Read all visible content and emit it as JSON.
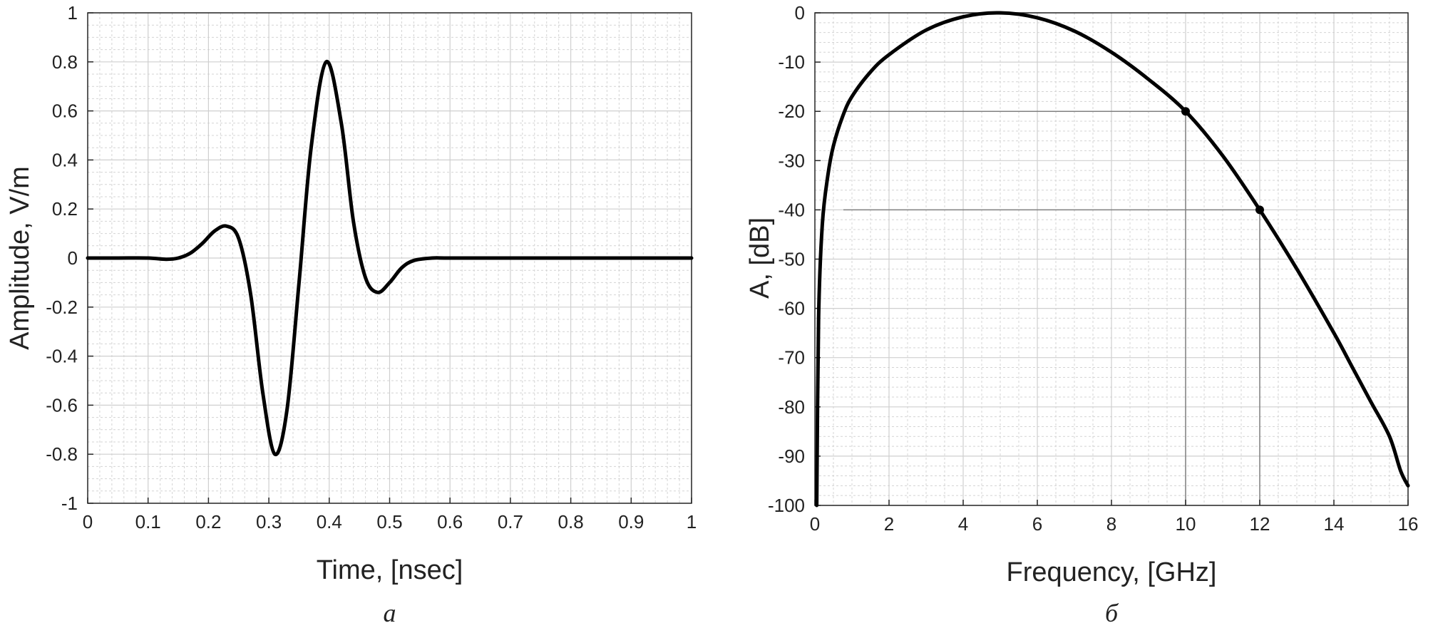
{
  "chart_data": [
    {
      "type": "line",
      "panel_label": "а",
      "xlabel": "Time, [nsec]",
      "ylabel": "Amplitude, V/m",
      "xlim": [
        0,
        1
      ],
      "ylim": [
        -1,
        1
      ],
      "xticks": [
        "0",
        "0.1",
        "0.2",
        "0.3",
        "0.4",
        "0.5",
        "0.6",
        "0.7",
        "0.8",
        "0.9",
        "1"
      ],
      "yticks": [
        "-1",
        "-0.8",
        "-0.6",
        "-0.4",
        "-0.2",
        "0",
        "0.2",
        "0.4",
        "0.6",
        "0.8",
        "1"
      ],
      "grid": true,
      "line_color": "#000000",
      "series": [
        {
          "x": [
            0,
            0.05,
            0.1,
            0.13,
            0.15,
            0.17,
            0.19,
            0.21,
            0.23,
            0.25,
            0.27,
            0.29,
            0.31,
            0.33,
            0.35,
            0.37,
            0.395,
            0.42,
            0.44,
            0.46,
            0.48,
            0.5,
            0.52,
            0.54,
            0.57,
            0.6,
            0.7,
            0.8,
            0.9,
            1.0
          ],
          "y": [
            0,
            0,
            0,
            -0.005,
            0,
            0.02,
            0.06,
            0.11,
            0.13,
            0.08,
            -0.15,
            -0.55,
            -0.8,
            -0.62,
            -0.1,
            0.45,
            0.8,
            0.55,
            0.15,
            -0.08,
            -0.14,
            -0.1,
            -0.04,
            -0.01,
            0,
            0,
            0,
            0,
            0,
            0
          ]
        }
      ]
    },
    {
      "type": "line",
      "panel_label": "б",
      "xlabel": "Frequency, [GHz]",
      "ylabel": "A, [dB]",
      "xlim": [
        0,
        16
      ],
      "ylim": [
        -100,
        0
      ],
      "xticks": [
        "0",
        "2",
        "4",
        "6",
        "8",
        "10",
        "12",
        "14",
        "16"
      ],
      "yticks": [
        "-100",
        "-90",
        "-80",
        "-70",
        "-60",
        "-50",
        "-40",
        "-30",
        "-20",
        "-10",
        "0"
      ],
      "grid": true,
      "line_color": "#000000",
      "series": [
        {
          "x": [
            0.05,
            0.1,
            0.2,
            0.35,
            0.5,
            0.75,
            1,
            1.5,
            2,
            3,
            4,
            5,
            6,
            7,
            8,
            9,
            10,
            11,
            12,
            13,
            14,
            14.5,
            15,
            15.5,
            15.8,
            16
          ],
          "y": [
            -100,
            -62,
            -43,
            -33,
            -27,
            -21,
            -17,
            -12,
            -8.5,
            -3.5,
            -0.8,
            0,
            -1,
            -3.7,
            -8,
            -13.5,
            -20,
            -29,
            -40,
            -52,
            -65,
            -72,
            -79,
            -86,
            -93,
            -96
          ]
        }
      ],
      "markers": [
        {
          "x": 10,
          "y": -20
        },
        {
          "x": 12,
          "y": -40
        }
      ],
      "reference_line_color": "#808080"
    }
  ]
}
